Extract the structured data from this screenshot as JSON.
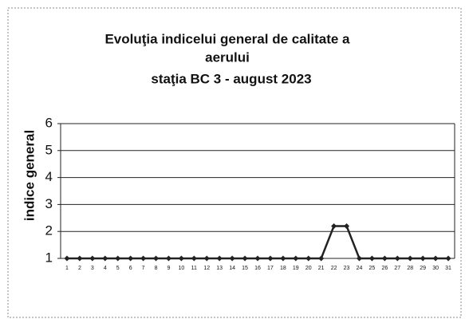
{
  "chart_data": {
    "type": "line",
    "title": [
      "Evoluţia indicelui general de calitate a",
      "aerului",
      "staţia BC 3   - august 2023"
    ],
    "y_label": "indice general",
    "categories": [
      "1",
      "2",
      "3",
      "4",
      "5",
      "6",
      "7",
      "8",
      "9",
      "10",
      "11",
      "12",
      "13",
      "14",
      "15",
      "16",
      "17",
      "18",
      "19",
      "20",
      "21",
      "22",
      "23",
      "24",
      "25",
      "26",
      "27",
      "28",
      "29",
      "30",
      "31"
    ],
    "series": [
      {
        "name": "indice general",
        "color": "#222222",
        "values": [
          1,
          1,
          1,
          1,
          1,
          1,
          1,
          1,
          1,
          1,
          1,
          1,
          1,
          1,
          1,
          1,
          1,
          1,
          1,
          1,
          1,
          2.2,
          2.2,
          1,
          1,
          1,
          1,
          1,
          1,
          1,
          1
        ]
      }
    ],
    "ylim": [
      1,
      6
    ],
    "yticks": [
      1,
      2,
      3,
      4,
      5,
      6
    ],
    "grid": true
  }
}
